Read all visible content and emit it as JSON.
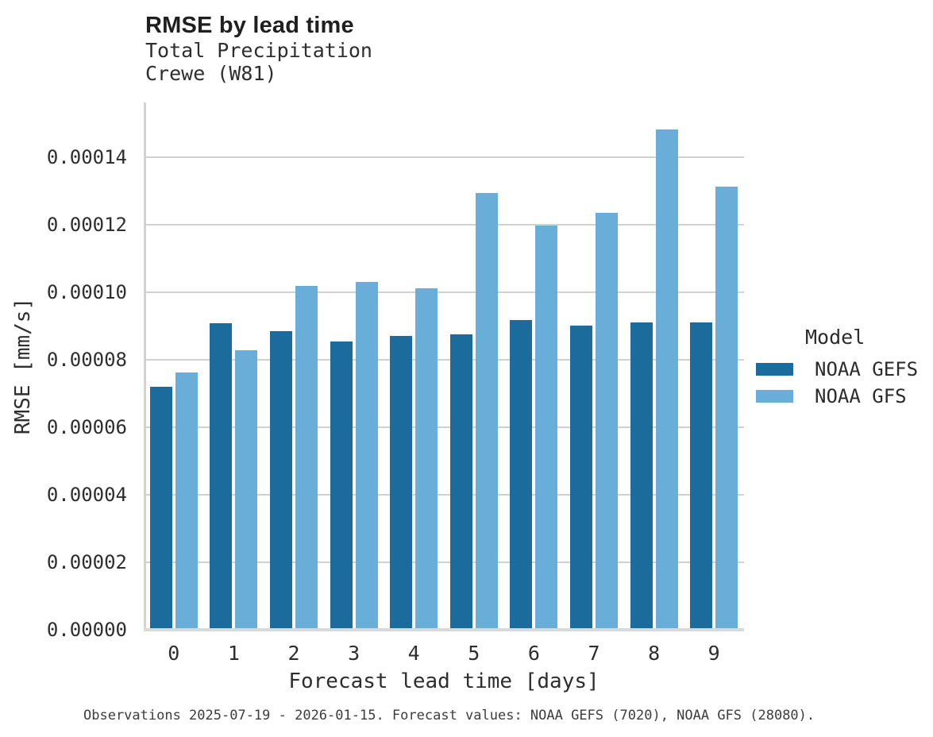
{
  "header": {
    "title": "RMSE by lead time",
    "subtitle_line1": "Total Precipitation",
    "subtitle_line2": "Crewe (W81)"
  },
  "legend": {
    "title": "Model",
    "items": [
      {
        "label": "NOAA GEFS",
        "color": "#1b6c9d"
      },
      {
        "label": "NOAA GFS",
        "color": "#68aed8"
      }
    ]
  },
  "footer": {
    "caption": "Observations 2025-07-19 - 2026-01-15. Forecast values: NOAA GEFS (7020), NOAA GFS (28080)."
  },
  "chart_data": {
    "type": "bar",
    "title": "RMSE by lead time",
    "subtitle": [
      "Total Precipitation",
      "Crewe (W81)"
    ],
    "xlabel": "Forecast lead time [days]",
    "ylabel": "RMSE [mm/s]",
    "categories": [
      "0",
      "1",
      "2",
      "3",
      "4",
      "5",
      "6",
      "7",
      "8",
      "9"
    ],
    "series": [
      {
        "name": "NOAA GEFS",
        "color": "#1b6c9d",
        "values": [
          7.21e-05,
          9.08e-05,
          8.84e-05,
          8.53e-05,
          8.71e-05,
          8.75e-05,
          9.17e-05,
          9e-05,
          9.11e-05,
          9.11e-05
        ]
      },
      {
        "name": "NOAA GFS",
        "color": "#68aed8",
        "values": [
          7.62e-05,
          8.27e-05,
          0.0001019,
          0.0001031,
          0.0001011,
          0.0001294,
          0.0001198,
          0.0001234,
          0.0001483,
          0.0001312
        ]
      }
    ],
    "ylim": [
      0,
      0.0001562
    ],
    "yticks": [
      0.0,
      2e-05,
      4e-05,
      6e-05,
      8e-05,
      0.0001,
      0.00012,
      0.00014
    ],
    "ytick_labels": [
      "0.00000",
      "0.00002",
      "0.00004",
      "0.00006",
      "0.00008",
      "0.00010",
      "0.00012",
      "0.00014"
    ],
    "grid": "horizontal",
    "legend_position": "right",
    "legend_title": "Model"
  }
}
